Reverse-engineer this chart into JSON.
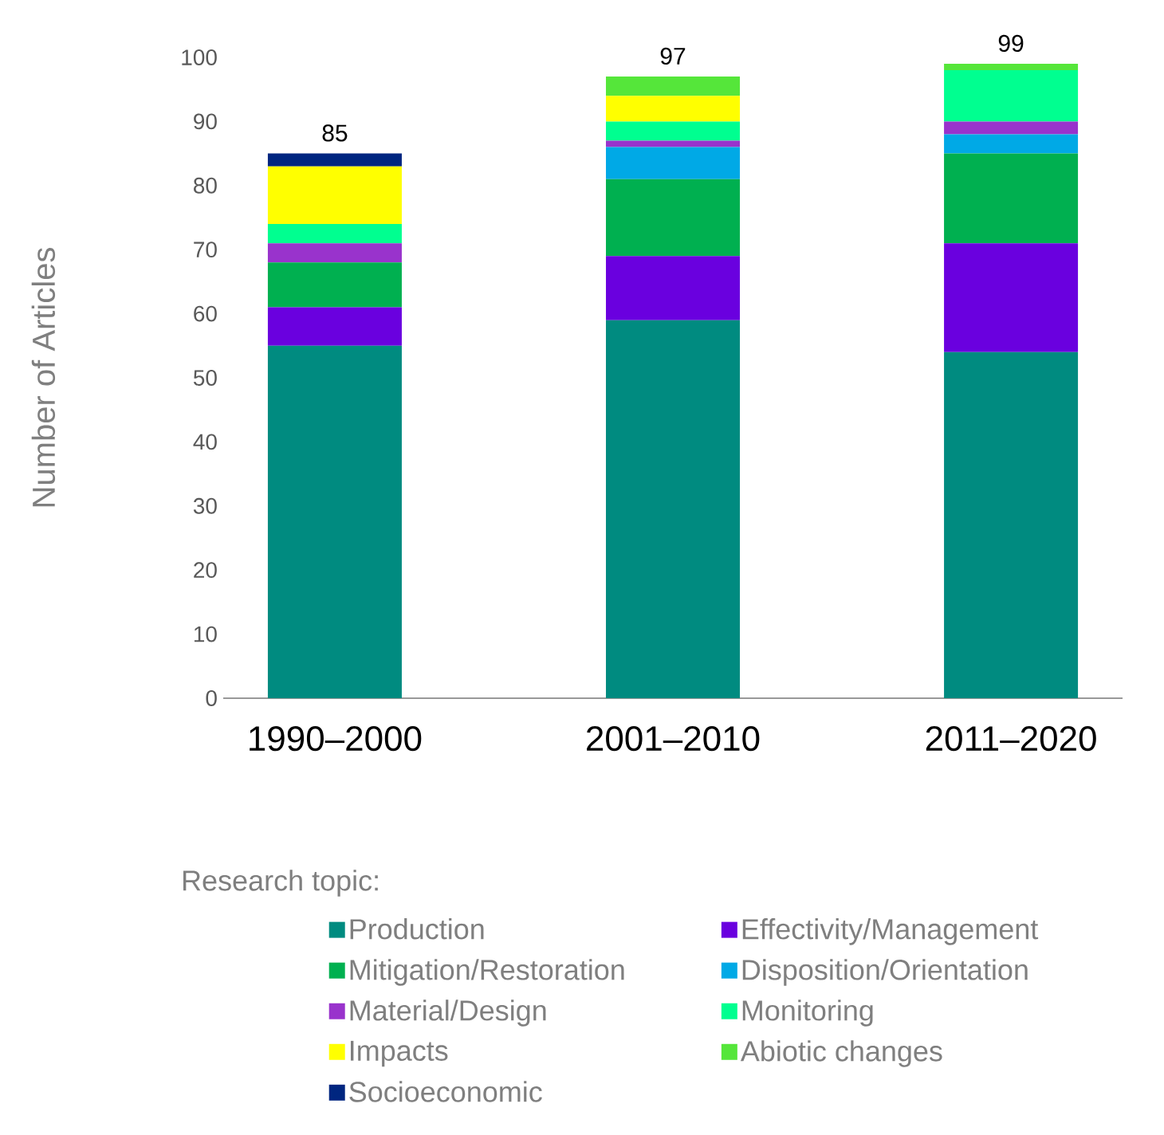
{
  "chart_data": {
    "type": "bar",
    "stacked": true,
    "ylabel": "Number of Articles",
    "legend_title": "Research topic:",
    "legend": "bottom",
    "categories": [
      "1990–2000",
      "2001–2010",
      "2011–2020"
    ],
    "ylim": [
      0,
      100
    ],
    "yticks": [
      0,
      10,
      20,
      30,
      40,
      50,
      60,
      70,
      80,
      90,
      100
    ],
    "totals": [
      "85",
      "97",
      "99"
    ],
    "series": [
      {
        "name": "Production",
        "color": "#008b80",
        "values": [
          55,
          59,
          54
        ]
      },
      {
        "name": "Effectivity/Management",
        "color": "#6a00df",
        "values": [
          6,
          10,
          17
        ]
      },
      {
        "name": "Mitigation/Restoration",
        "color": "#00b050",
        "values": [
          7,
          12,
          14
        ]
      },
      {
        "name": "Disposition/Orientation",
        "color": "#00a9e6",
        "values": [
          0,
          5,
          3
        ]
      },
      {
        "name": "Material/Design",
        "color": "#9933cc",
        "values": [
          3,
          1,
          2
        ]
      },
      {
        "name": "Monitoring",
        "color": "#00ff90",
        "values": [
          3,
          3,
          8
        ]
      },
      {
        "name": "Impacts",
        "color": "#ffff00",
        "values": [
          9,
          4,
          0
        ]
      },
      {
        "name": "Abiotic changes",
        "color": "#55e63a",
        "values": [
          0,
          3,
          1
        ]
      },
      {
        "name": "Socioeconomic",
        "color": "#002680",
        "values": [
          2,
          0,
          0
        ]
      }
    ]
  }
}
